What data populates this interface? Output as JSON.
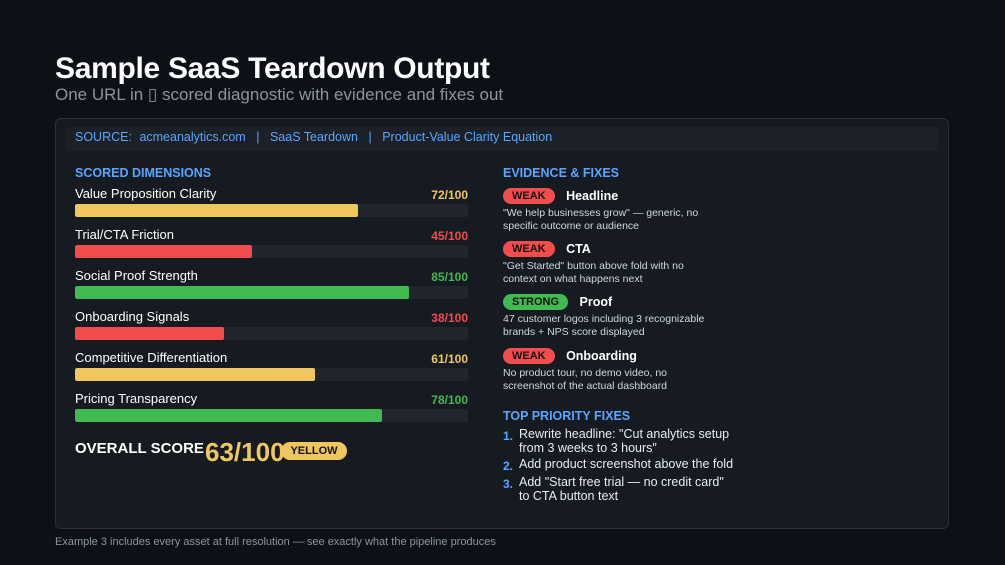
{
  "header": {
    "title": "Sample SaaS Teardown Output",
    "subtitle": "One URL in ▯ scored diagnostic with evidence and fixes out"
  },
  "source_bar": {
    "source_label": "SOURCE:",
    "domain": "acmeanalytics.com",
    "separator": "|",
    "report_type": "SaaS Teardown",
    "framework": "Product-Value Clarity Equation"
  },
  "colors": {
    "accent_blue": "#58a6ff",
    "yellow": "#f0c75e",
    "red": "#f34c4c",
    "green": "#3fb950"
  },
  "scored": {
    "heading": "SCORED DIMENSIONS",
    "dimensions": [
      {
        "label": "Value Proposition Clarity",
        "score_text": "72/100",
        "score": 72,
        "status": "yellow"
      },
      {
        "label": "Trial/CTA Friction",
        "score_text": "45/100",
        "score": 45,
        "status": "red"
      },
      {
        "label": "Social Proof Strength",
        "score_text": "85/100",
        "score": 85,
        "status": "green"
      },
      {
        "label": "Onboarding Signals",
        "score_text": "38/100",
        "score": 38,
        "status": "red"
      },
      {
        "label": "Competitive Differentiation",
        "score_text": "61/100",
        "score": 61,
        "status": "yellow"
      },
      {
        "label": "Pricing Transparency",
        "score_text": "78/100",
        "score": 78,
        "status": "green"
      }
    ],
    "overall_label": "OVERALL SCORE",
    "overall_value": "63/100",
    "overall_badge": "YELLOW"
  },
  "evidence": {
    "heading": "EVIDENCE & FIXES",
    "items": [
      {
        "badge": "WEAK",
        "status": "red",
        "title": "Headline",
        "description": "\"We help businesses grow\" — generic, no specific outcome or audience"
      },
      {
        "badge": "WEAK",
        "status": "red",
        "title": "CTA",
        "description": "\"Get Started\" button above fold with no context on what happens next"
      },
      {
        "badge": "STRONG",
        "status": "green",
        "title": "Proof",
        "description": "47 customer logos including 3 recognizable brands + NPS score displayed"
      },
      {
        "badge": "WEAK",
        "status": "red",
        "title": "Onboarding",
        "description": "No product tour, no demo video, no screenshot of the actual dashboard"
      }
    ]
  },
  "fixes": {
    "heading": "TOP PRIORITY FIXES",
    "items": [
      {
        "number": "1.",
        "text": "Rewrite headline: \"Cut analytics setup from 3 weeks to 3 hours\""
      },
      {
        "number": "2.",
        "text": "Add product screenshot above the fold"
      },
      {
        "number": "3.",
        "text": "Add \"Start free trial — no credit card\" to CTA button text"
      }
    ]
  },
  "footer": {
    "text": "Example 3 includes every asset at full resolution — see exactly what the pipeline produces"
  }
}
